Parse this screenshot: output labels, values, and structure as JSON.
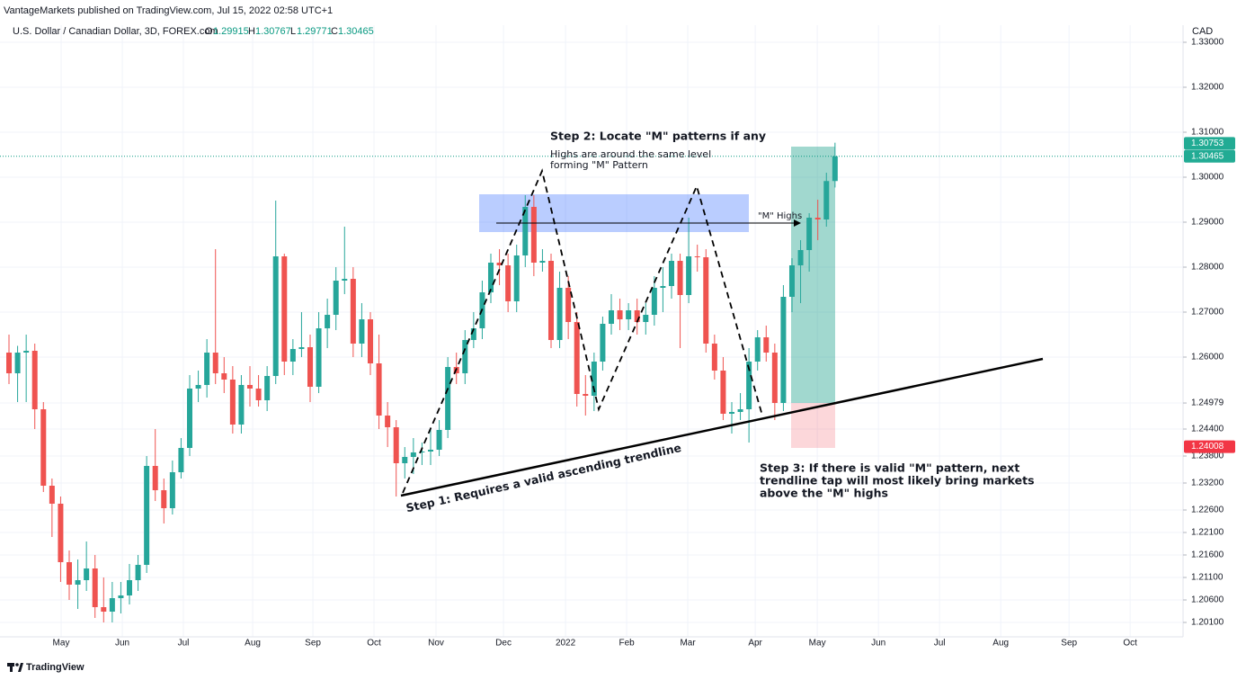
{
  "header": {
    "publisher": "VantageMarkets published on TradingView.com, Jul 15, 2022 02:58 UTC+1",
    "symbol": "U.S. Dollar / Canadian Dollar, 3D, FOREX.com",
    "open_label": "O",
    "high_label": "H",
    "low_label": "L",
    "close_label": "C"
  },
  "footer": {
    "brand": "TradingView"
  },
  "annotations": {
    "step1": "Step 1: Requires a valid ascending trendline",
    "step2": "Step 2: Locate \"M\" patterns if any",
    "step2_note": [
      "Highs are around the same level",
      "forming \"M\" Pattern"
    ],
    "m_highs": "\"M\" Highs",
    "step3": [
      "Step 3: If there is valid \"M\" pattern, next",
      "trendline tap will most likely bring markets",
      "above the \"M\" highs"
    ]
  },
  "chart_data": {
    "type": "candlestick",
    "y_unit": "CAD",
    "up_color": "#26a69a",
    "down_color": "#ef5350",
    "grid": true,
    "open": [
      1.261,
      1.2564,
      1.261,
      1.2614,
      1.2484,
      1.2314,
      1.2274,
      1.2144,
      1.2094,
      1.2104,
      1.213,
      1.2044,
      1.2034,
      1.2064,
      1.207,
      1.2104,
      1.2138,
      1.2358,
      1.2304,
      1.2264,
      1.2344,
      1.2398,
      1.253,
      1.2538,
      1.261,
      1.2564,
      1.255,
      1.245,
      1.2538,
      1.253,
      1.2504,
      1.2558,
      1.2824,
      1.259,
      1.2618,
      1.2622,
      1.2534,
      1.2664,
      1.2694,
      1.277,
      1.2774,
      1.263,
      1.2684,
      1.2586,
      1.247,
      1.2444,
      1.2364,
      1.2378,
      1.2388,
      1.239,
      1.2394,
      1.2438,
      1.2578,
      1.2564,
      1.2638,
      1.2664,
      1.2744,
      1.281,
      1.2804,
      1.2724,
      1.2826,
      1.2934,
      1.281,
      1.2814,
      1.2638,
      1.2754,
      1.2678,
      1.2518,
      1.2514,
      1.259,
      1.2674,
      1.2704,
      1.2684,
      1.2704,
      1.2678,
      1.2694,
      1.2754,
      1.2758,
      1.2814,
      1.2738,
      1.2824,
      1.2822,
      1.263,
      1.257,
      1.2474,
      1.2478,
      1.2484,
      1.259,
      1.2644,
      1.261,
      1.2498,
      1.2734,
      1.2804,
      1.2838,
      1.291,
      1.2906,
      1.29915
    ],
    "high": [
      1.265,
      1.2625,
      1.265,
      1.263,
      1.25,
      1.233,
      1.229,
      1.217,
      1.215,
      1.219,
      1.216,
      1.211,
      1.21,
      1.21,
      1.214,
      1.216,
      1.238,
      1.244,
      1.233,
      1.237,
      1.242,
      1.256,
      1.257,
      1.264,
      1.284,
      1.26,
      1.258,
      1.256,
      1.258,
      1.256,
      1.258,
      1.2948,
      1.283,
      1.264,
      1.27,
      1.265,
      1.27,
      1.273,
      1.28,
      1.289,
      1.28,
      1.272,
      1.27,
      1.265,
      1.25,
      1.246,
      1.24,
      1.242,
      1.241,
      1.244,
      1.246,
      1.26,
      1.261,
      1.266,
      1.27,
      1.277,
      1.283,
      1.284,
      1.283,
      1.285,
      1.296,
      1.296,
      1.284,
      1.283,
      1.279,
      1.278,
      1.27,
      1.256,
      1.261,
      1.269,
      1.274,
      1.273,
      1.272,
      1.273,
      1.272,
      1.278,
      1.28,
      1.283,
      1.283,
      1.291,
      1.285,
      1.284,
      1.265,
      1.26,
      1.25,
      1.252,
      1.262,
      1.266,
      1.267,
      1.263,
      1.276,
      1.282,
      1.286,
      1.292,
      1.295,
      1.301,
      1.30767
    ],
    "low": [
      1.254,
      1.25,
      1.25,
      1.244,
      1.23,
      1.22,
      1.21,
      1.206,
      1.204,
      1.208,
      1.202,
      1.201,
      1.201,
      1.203,
      1.205,
      1.208,
      1.212,
      1.228,
      1.223,
      1.225,
      1.233,
      1.238,
      1.25,
      1.251,
      1.254,
      1.252,
      1.243,
      1.243,
      1.249,
      1.249,
      1.248,
      1.254,
      1.256,
      1.256,
      1.26,
      1.25,
      1.252,
      1.262,
      1.266,
      1.274,
      1.26,
      1.26,
      1.256,
      1.244,
      1.24,
      1.229,
      1.233,
      1.234,
      1.236,
      1.236,
      1.238,
      1.242,
      1.254,
      1.254,
      1.262,
      1.264,
      1.272,
      1.276,
      1.27,
      1.27,
      1.28,
      1.278,
      1.279,
      1.262,
      1.262,
      1.264,
      1.249,
      1.247,
      1.248,
      1.257,
      1.265,
      1.266,
      1.266,
      1.265,
      1.265,
      1.267,
      1.27,
      1.273,
      1.262,
      1.272,
      1.279,
      1.261,
      1.255,
      1.246,
      1.243,
      1.246,
      1.241,
      1.257,
      1.259,
      1.246,
      1.248,
      1.27,
      1.272,
      1.279,
      1.286,
      1.289,
      1.29771
    ],
    "close": [
      1.2564,
      1.261,
      1.2614,
      1.2484,
      1.2314,
      1.2274,
      1.2144,
      1.2094,
      1.2104,
      1.213,
      1.2044,
      1.2034,
      1.2064,
      1.207,
      1.2104,
      1.2138,
      1.2358,
      1.2304,
      1.2264,
      1.2344,
      1.2398,
      1.253,
      1.2538,
      1.261,
      1.2564,
      1.255,
      1.245,
      1.2538,
      1.253,
      1.2504,
      1.2558,
      1.2824,
      1.259,
      1.2618,
      1.2622,
      1.2534,
      1.2664,
      1.2694,
      1.277,
      1.2774,
      1.263,
      1.2684,
      1.2586,
      1.247,
      1.2444,
      1.2364,
      1.2378,
      1.2388,
      1.239,
      1.2394,
      1.2438,
      1.2578,
      1.2564,
      1.2638,
      1.2664,
      1.2744,
      1.281,
      1.2804,
      1.2724,
      1.2826,
      1.2934,
      1.281,
      1.2814,
      1.2638,
      1.2754,
      1.2678,
      1.2518,
      1.2514,
      1.259,
      1.2674,
      1.2704,
      1.2684,
      1.2704,
      1.2678,
      1.2694,
      1.2754,
      1.2758,
      1.2814,
      1.2738,
      1.2824,
      1.2822,
      1.263,
      1.257,
      1.2474,
      1.2478,
      1.2484,
      1.259,
      1.2644,
      1.261,
      1.2498,
      1.2734,
      1.2804,
      1.2838,
      1.291,
      1.2906,
      1.29915,
      1.30465
    ],
    "ylim": [
      1.1978,
      1.3338
    ],
    "yticks": [
      {
        "value": 1.33,
        "label": "1.33000"
      },
      {
        "value": 1.32,
        "label": "1.32000"
      },
      {
        "value": 1.31,
        "label": "1.31000"
      },
      {
        "value": 1.3,
        "label": "1.30000"
      },
      {
        "value": 1.29,
        "label": "1.29000"
      },
      {
        "value": 1.28,
        "label": "1.28000"
      },
      {
        "value": 1.27,
        "label": "1.27000"
      },
      {
        "value": 1.26,
        "label": "1.26000"
      },
      1.24979,
      {
        "value": 1.244,
        "label": "1.24400"
      },
      {
        "value": 1.238,
        "label": "1.23800"
      },
      {
        "value": 1.232,
        "label": "1.23200"
      },
      {
        "value": 1.226,
        "label": "1.22600"
      },
      {
        "value": 1.221,
        "label": "1.22100"
      },
      {
        "value": 1.216,
        "label": "1.21600"
      },
      {
        "value": 1.211,
        "label": "1.21100"
      },
      {
        "value": 1.206,
        "label": "1.20600"
      },
      {
        "value": 1.201,
        "label": "1.20100"
      }
    ],
    "xlim": [
      -1.045,
      136.45
    ],
    "xticks": [
      {
        "value": 6.06,
        "label": "May"
      },
      {
        "value": 13.17,
        "label": "Jun"
      },
      {
        "value": 20.27,
        "label": "Jul"
      },
      {
        "value": 28.32,
        "label": "Aug"
      },
      {
        "value": 35.32,
        "label": "Sep"
      },
      {
        "value": 42.42,
        "label": "Oct"
      },
      {
        "value": 49.63,
        "label": "Nov"
      },
      {
        "value": 57.47,
        "label": "Dec"
      },
      {
        "value": 64.68,
        "label": "2022"
      },
      {
        "value": 71.79,
        "label": "Feb"
      },
      {
        "value": 78.89,
        "label": "Mar"
      },
      {
        "value": 86.73,
        "label": "Apr"
      },
      {
        "value": 93.94,
        "label": "May"
      },
      {
        "value": 101.05,
        "label": "Jun"
      },
      {
        "value": 108.15,
        "label": "Jul"
      },
      {
        "value": 115.26,
        "label": "Aug"
      },
      {
        "value": 123.2,
        "label": "Sep"
      },
      {
        "value": 130.3,
        "label": "Oct"
      }
    ],
    "price_tags": [
      {
        "value": 1.30753,
        "color": "#22ab94"
      },
      {
        "value": 1.30465,
        "color": "#22ab94"
      },
      {
        "value": 1.24008,
        "color": "#f23645"
      }
    ]
  }
}
